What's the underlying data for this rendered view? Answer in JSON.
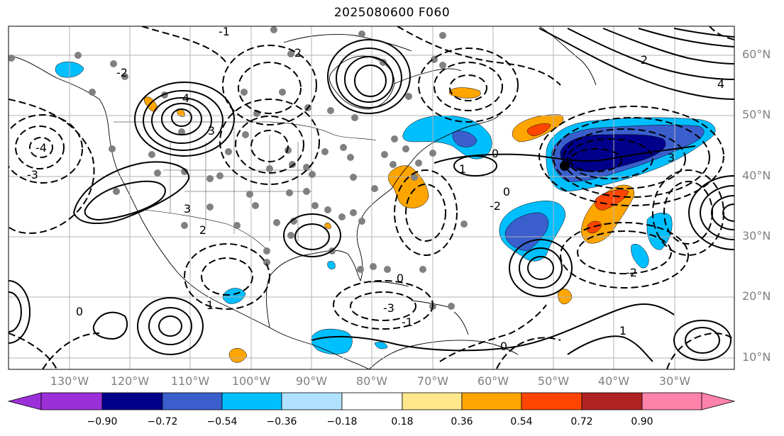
{
  "title": "2025080600 F060",
  "lat_labels": [
    "60°N",
    "50°N",
    "40°N",
    "30°N",
    "20°N",
    "10°N"
  ],
  "lon_labels": [
    "130°W",
    "120°W",
    "110°W",
    "100°W",
    "90°W",
    "80°W",
    "70°W",
    "60°W",
    "50°W",
    "40°W",
    "30°W"
  ],
  "colorbar": {
    "ticks": [
      "−0.90",
      "−0.72",
      "−0.54",
      "−0.36",
      "−0.18",
      "0.18",
      "0.36",
      "0.54",
      "0.72",
      "0.90"
    ],
    "colors": [
      "#9b30d9",
      "#00008b",
      "#3a5fcd",
      "#00bfff",
      "#b0e2ff",
      "#ffffff",
      "#ffe88c",
      "#ffa500",
      "#ff4500",
      "#b22222",
      "#ff82ab"
    ]
  },
  "contour_labels": [
    "-1",
    "-2",
    "-3",
    "-4",
    "0",
    "1",
    "2",
    "3",
    "4"
  ],
  "colors": {
    "land_outline": "#000000",
    "grid": "#b3b3b3",
    "station_dots": "#808080",
    "contours": "#000000"
  }
}
